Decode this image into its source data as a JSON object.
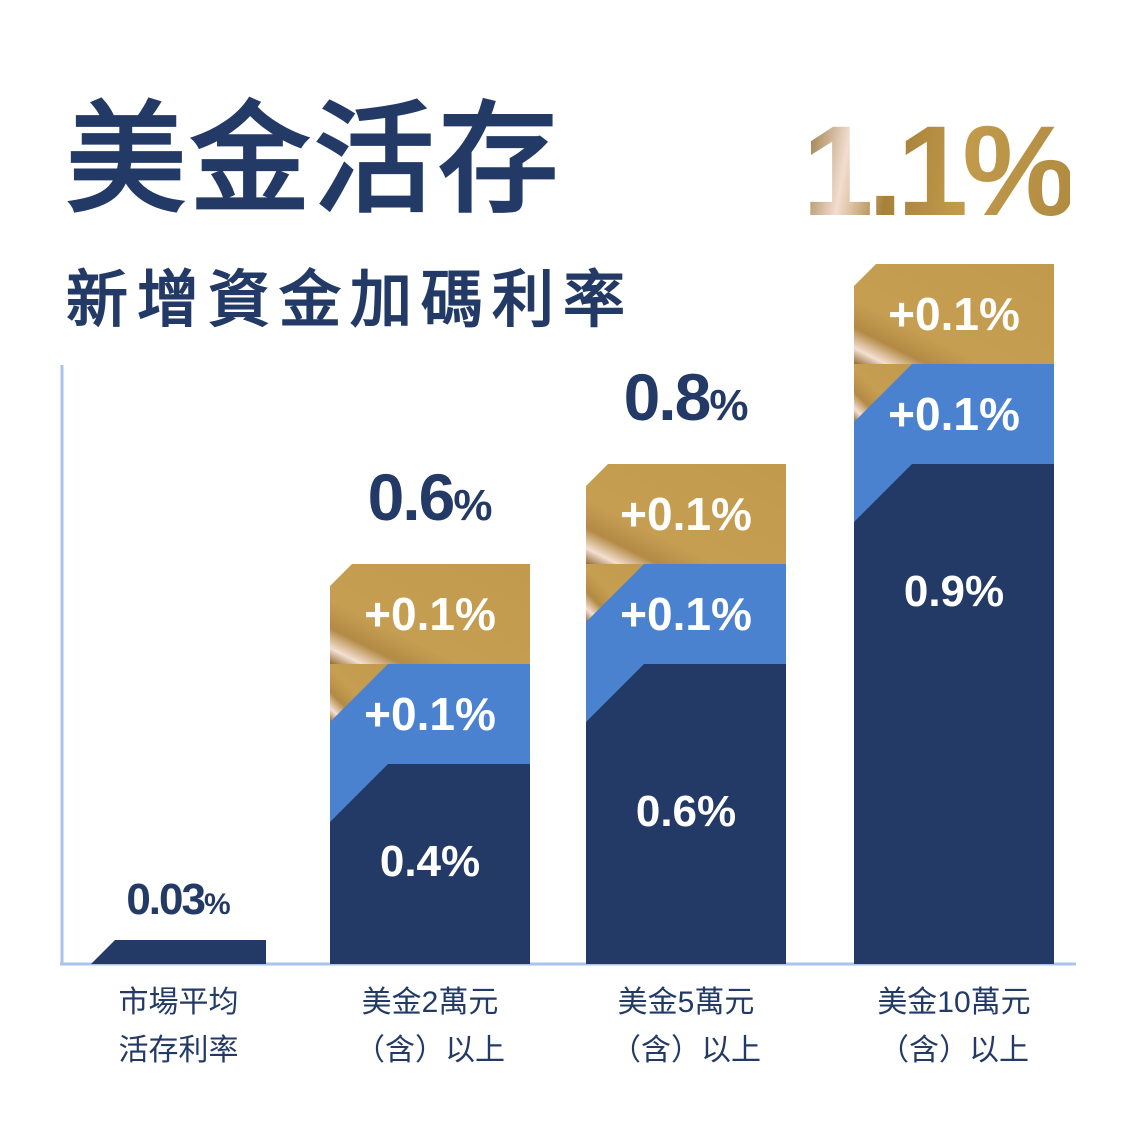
{
  "header": {
    "title": "美金活存",
    "subtitle": "新增資金加碼利率",
    "headline_rate": "1.1%"
  },
  "colors": {
    "base": "#233a66",
    "bonus_blue": "#4a82d0",
    "bonus_gold": "#c29a4d",
    "gold_highlight": "#f4dfd2",
    "axis": "#a9c4ea",
    "label_text": "#233a66"
  },
  "chart_data": {
    "type": "bar",
    "stacked": true,
    "title": "",
    "xlabel": "",
    "ylabel": "",
    "categories": [
      [
        "市場平均",
        "活存利率"
      ],
      [
        "美金2萬元",
        "（含）以上"
      ],
      [
        "美金5萬元",
        "（含）以上"
      ],
      [
        "美金10萬元",
        "（含）以上"
      ]
    ],
    "series": [
      {
        "values": [
          0.03,
          0.4,
          0.6,
          0.9
        ],
        "labels": [
          "",
          "0.4%",
          "0.6%",
          "0.9%"
        ]
      },
      {
        "values": [
          0,
          0.1,
          0.1,
          0.1
        ],
        "labels": [
          "",
          "+0.1%",
          "+0.1%",
          "+0.1%"
        ]
      },
      {
        "values": [
          0,
          0.1,
          0.1,
          0.1
        ],
        "labels": [
          "",
          "+0.1%",
          "+0.1%",
          "+0.1%"
        ]
      }
    ],
    "totals": [
      {
        "num": "0.03",
        "unit": "%"
      },
      {
        "num": "0.6",
        "unit": "%"
      },
      {
        "num": "0.8",
        "unit": "%"
      },
      {
        "num": "1.1",
        "unit": "%"
      }
    ],
    "grid": false
  }
}
